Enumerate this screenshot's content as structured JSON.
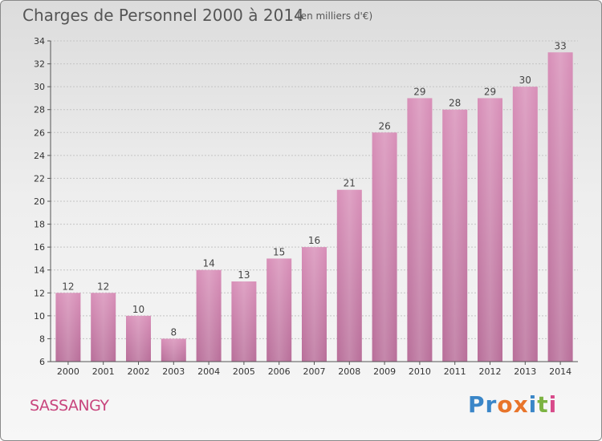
{
  "title": "Charges de Personnel 2000 à 2014",
  "unit_note": "(en milliers d'€)",
  "commune": "SASSANGY",
  "logo": {
    "text": "Proxiti",
    "letters": [
      {
        "ch": "P",
        "color": "#3a86c8"
      },
      {
        "ch": "r",
        "color": "#3a86c8"
      },
      {
        "ch": "o",
        "color": "#e8742a"
      },
      {
        "ch": "x",
        "color": "#e8742a"
      },
      {
        "ch": "i",
        "color": "#3a86c8"
      },
      {
        "ch": "t",
        "color": "#7cb342"
      },
      {
        "ch": "i",
        "color": "#d84a8a"
      }
    ]
  },
  "chart_data": {
    "type": "bar",
    "categories": [
      "2000",
      "2001",
      "2002",
      "2003",
      "2004",
      "2005",
      "2006",
      "2007",
      "2008",
      "2009",
      "2010",
      "2011",
      "2012",
      "2013",
      "2014"
    ],
    "values": [
      12,
      12,
      10,
      8,
      14,
      13,
      15,
      16,
      21,
      26,
      29,
      28,
      29,
      30,
      33
    ],
    "ylim": [
      6,
      34
    ],
    "yticks": [
      6,
      8,
      10,
      12,
      14,
      16,
      18,
      20,
      22,
      24,
      26,
      28,
      30,
      32,
      34
    ],
    "grid": true,
    "data_labels": true,
    "bar_color": "#d88fb8",
    "bar_color_dark": "#b86e99"
  }
}
